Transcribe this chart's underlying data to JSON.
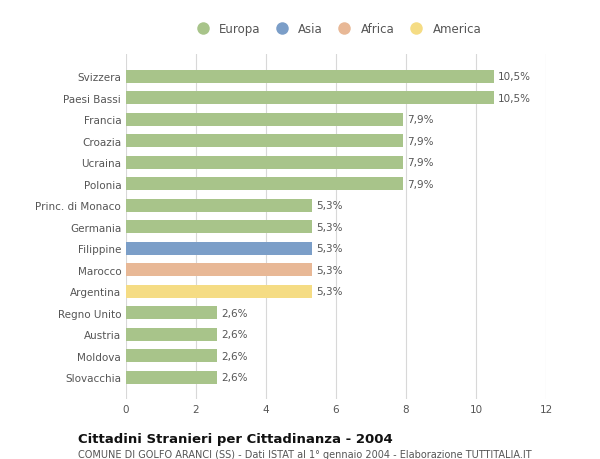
{
  "categories": [
    "Slovacchia",
    "Moldova",
    "Austria",
    "Regno Unito",
    "Argentina",
    "Marocco",
    "Filippine",
    "Germania",
    "Princ. di Monaco",
    "Polonia",
    "Ucraina",
    "Croazia",
    "Francia",
    "Paesi Bassi",
    "Svizzera"
  ],
  "values": [
    2.6,
    2.6,
    2.6,
    2.6,
    5.3,
    5.3,
    5.3,
    5.3,
    5.3,
    7.9,
    7.9,
    7.9,
    7.9,
    10.5,
    10.5
  ],
  "bar_colors": [
    "#a8c48a",
    "#a8c48a",
    "#a8c48a",
    "#a8c48a",
    "#f5dc84",
    "#e8b896",
    "#7b9ec8",
    "#a8c48a",
    "#a8c48a",
    "#a8c48a",
    "#a8c48a",
    "#a8c48a",
    "#a8c48a",
    "#a8c48a",
    "#a8c48a"
  ],
  "labels": [
    "2,6%",
    "2,6%",
    "2,6%",
    "2,6%",
    "5,3%",
    "5,3%",
    "5,3%",
    "5,3%",
    "5,3%",
    "7,9%",
    "7,9%",
    "7,9%",
    "7,9%",
    "10,5%",
    "10,5%"
  ],
  "legend": [
    {
      "label": "Europa",
      "color": "#a8c48a"
    },
    {
      "label": "Asia",
      "color": "#7b9ec8"
    },
    {
      "label": "Africa",
      "color": "#e8b896"
    },
    {
      "label": "America",
      "color": "#f5dc84"
    }
  ],
  "xlim": [
    0,
    12
  ],
  "xticks": [
    0,
    2,
    4,
    6,
    8,
    10,
    12
  ],
  "title": "Cittadini Stranieri per Cittadinanza - 2004",
  "subtitle": "COMUNE DI GOLFO ARANCI (SS) - Dati ISTAT al 1° gennaio 2004 - Elaborazione TUTTITALIA.IT",
  "background_color": "#ffffff",
  "grid_color": "#d8d8d8",
  "bar_height": 0.6,
  "label_fontsize": 7.5,
  "tick_fontsize": 7.5,
  "title_fontsize": 9.5,
  "subtitle_fontsize": 7.0,
  "legend_fontsize": 8.5,
  "text_color": "#555555"
}
